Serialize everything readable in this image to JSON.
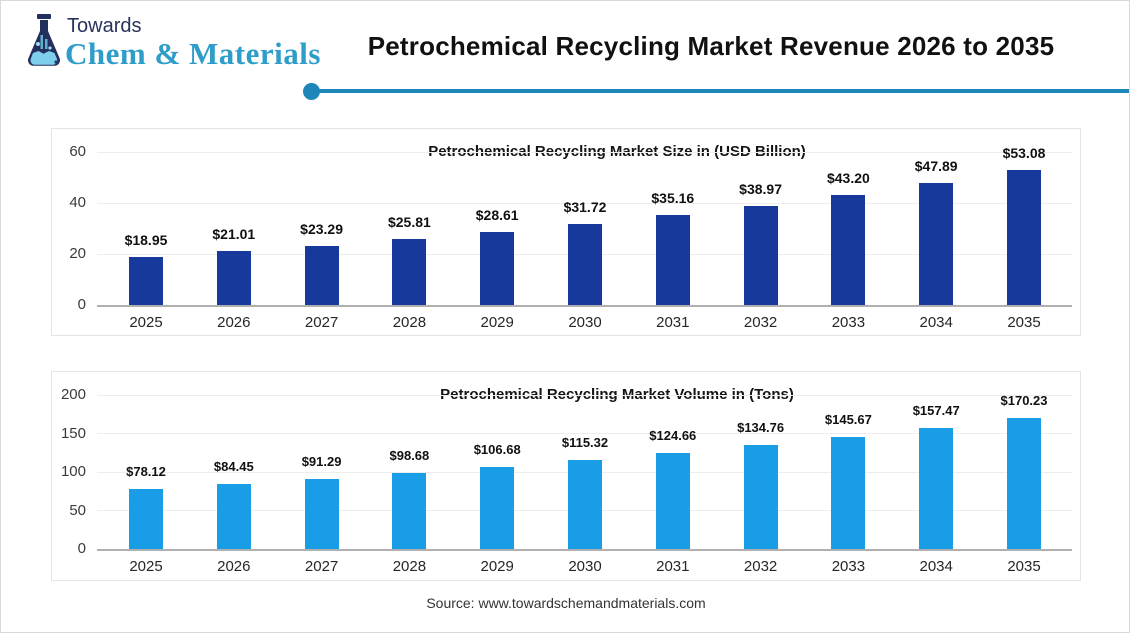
{
  "header": {
    "logo": {
      "towards": "Towards",
      "brand": "Chem & Materials",
      "flask_icon": "flask-icon",
      "towards_color": "#27335c",
      "brand_color": "#2e9dca"
    },
    "title": "Petrochemical Recycling Market Revenue 2026 to 2035",
    "divider_color": "#1d87b9"
  },
  "colors": {
    "market_size_bar": "#17399c",
    "market_volume_bar": "#189de6",
    "accent_teal": "#1d87b9",
    "gridline": "#ededed",
    "axis_line": "#b0b0b0"
  },
  "chart_data": [
    {
      "type": "bar",
      "title": "Petrochemical Recycling Market Size in (USD Billion)",
      "categories": [
        "2025",
        "2026",
        "2027",
        "2028",
        "2029",
        "2030",
        "2031",
        "2032",
        "2033",
        "2034",
        "2035"
      ],
      "values": [
        18.95,
        21.01,
        23.29,
        25.81,
        28.61,
        31.72,
        35.16,
        38.97,
        43.2,
        47.89,
        53.08
      ],
      "value_labels": [
        "$18.95",
        "$21.01",
        "$23.29",
        "$25.81",
        "$28.61",
        "$31.72",
        "$35.16",
        "$38.97",
        "$43.20",
        "$47.89",
        "$53.08"
      ],
      "bar_color": "#17399c",
      "xlabel": "",
      "ylabel": "",
      "ylim": [
        0,
        60
      ],
      "yticks": [
        0,
        20,
        40,
        60
      ],
      "grid": true,
      "legend": false,
      "unit": "USD Billion"
    },
    {
      "type": "bar",
      "title": "Petrochemical Recycling Market Volume in (Tons)",
      "categories": [
        "2025",
        "2026",
        "2027",
        "2028",
        "2029",
        "2030",
        "2031",
        "2032",
        "2033",
        "2034",
        "2035"
      ],
      "values": [
        78.12,
        84.45,
        91.29,
        98.68,
        106.68,
        115.32,
        124.66,
        134.76,
        145.67,
        157.47,
        170.23
      ],
      "value_labels": [
        "$78.12",
        "$84.45",
        "$91.29",
        "$98.68",
        "$106.68",
        "$115.32",
        "$124.66",
        "$134.76",
        "$145.67",
        "$157.47",
        "$170.23"
      ],
      "bar_color": "#189de6",
      "xlabel": "",
      "ylabel": "",
      "ylim": [
        0,
        200
      ],
      "yticks": [
        0,
        50,
        100,
        150,
        200
      ],
      "grid": true,
      "legend": false,
      "unit": "Tons"
    }
  ],
  "footer": {
    "source": "Source: www.towardschemandmaterials.com"
  }
}
